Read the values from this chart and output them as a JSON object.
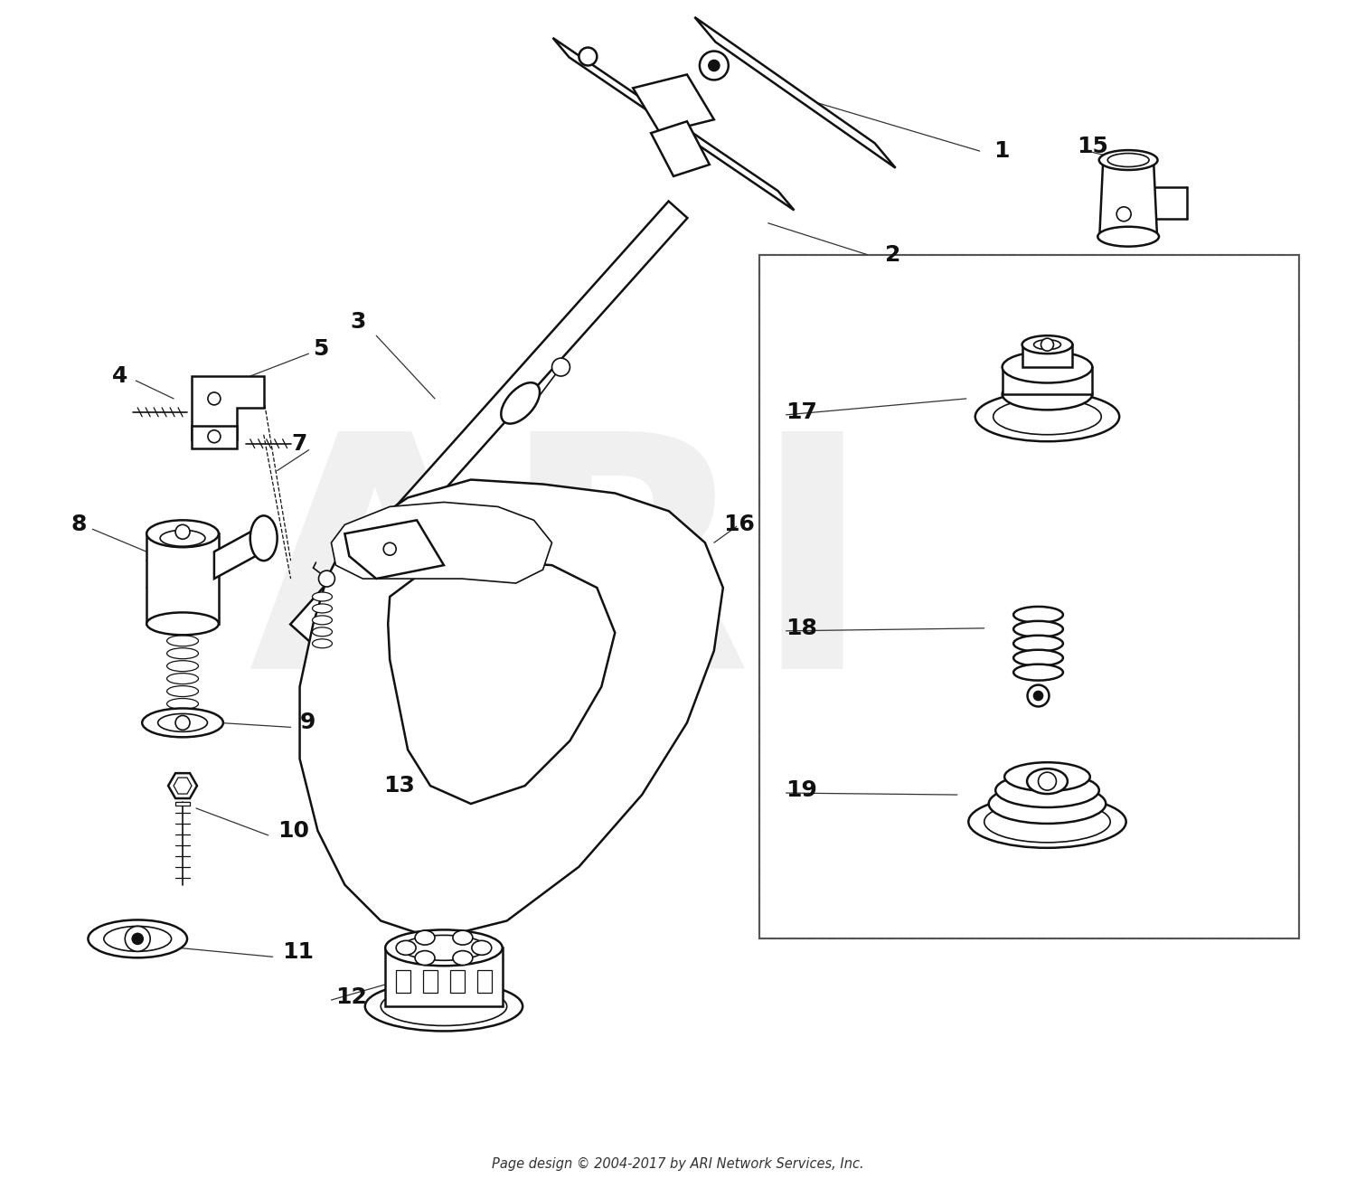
{
  "bg_color": "#ffffff",
  "line_color": "#111111",
  "watermark_color": "#cccccc",
  "watermark_text": "ARI",
  "footer_text": "Page design © 2004-2017 by ARI Network Services, Inc.",
  "fig_width": 15.0,
  "fig_height": 13.14,
  "dpi": 100
}
